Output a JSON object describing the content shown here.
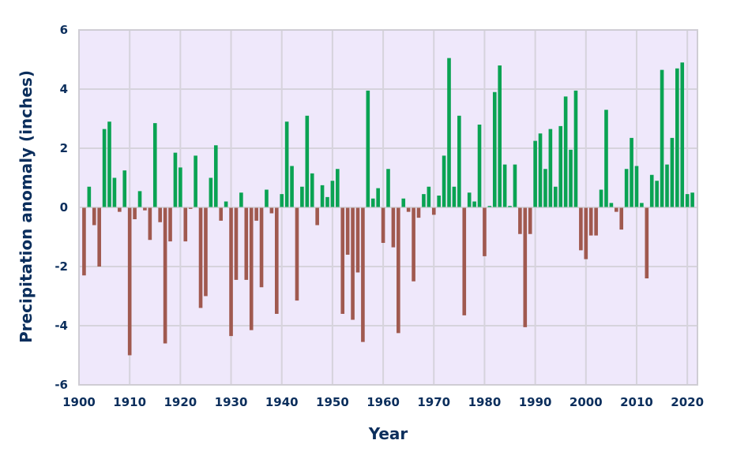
{
  "colors": {
    "plot_background": "#efe8fb",
    "grid": "#d6d3dc",
    "frame": "#cfcdd4",
    "positive": "#0aa353",
    "negative": "#a0594f",
    "text": "#0b2e5c"
  },
  "chart_data": {
    "type": "bar",
    "title": "",
    "xlabel": "Year",
    "ylabel": "Precipitation anomaly (inches)",
    "xlim": [
      1900,
      2022
    ],
    "ylim": [
      -6,
      6
    ],
    "x_ticks": [
      1900,
      1910,
      1920,
      1930,
      1940,
      1950,
      1960,
      1970,
      1980,
      1990,
      2000,
      2010,
      2020
    ],
    "y_ticks": [
      -6,
      -4,
      -2,
      0,
      2,
      4,
      6
    ],
    "grid": true,
    "legend": "none",
    "x": [
      1901,
      1902,
      1903,
      1904,
      1905,
      1906,
      1907,
      1908,
      1909,
      1910,
      1911,
      1912,
      1913,
      1914,
      1915,
      1916,
      1917,
      1918,
      1919,
      1920,
      1921,
      1922,
      1923,
      1924,
      1925,
      1926,
      1927,
      1928,
      1929,
      1930,
      1931,
      1932,
      1933,
      1934,
      1935,
      1936,
      1937,
      1938,
      1939,
      1940,
      1941,
      1942,
      1943,
      1944,
      1945,
      1946,
      1947,
      1948,
      1949,
      1950,
      1951,
      1952,
      1953,
      1954,
      1955,
      1956,
      1957,
      1958,
      1959,
      1960,
      1961,
      1962,
      1963,
      1964,
      1965,
      1966,
      1967,
      1968,
      1969,
      1970,
      1971,
      1972,
      1973,
      1974,
      1975,
      1976,
      1977,
      1978,
      1979,
      1980,
      1981,
      1982,
      1983,
      1984,
      1985,
      1986,
      1987,
      1988,
      1989,
      1990,
      1991,
      1992,
      1993,
      1994,
      1995,
      1996,
      1997,
      1998,
      1999,
      2000,
      2001,
      2002,
      2003,
      2004,
      2005,
      2006,
      2007,
      2008,
      2009,
      2010,
      2011,
      2012,
      2013,
      2014,
      2015,
      2016,
      2017,
      2018,
      2019,
      2020,
      2021
    ],
    "values": [
      -2.3,
      0.7,
      -0.6,
      -2.0,
      2.65,
      2.9,
      1.0,
      -0.15,
      1.25,
      -5.0,
      -0.4,
      0.55,
      -0.1,
      -1.1,
      2.85,
      -0.5,
      -4.6,
      -1.15,
      1.85,
      1.35,
      -1.15,
      -0.05,
      1.75,
      -3.4,
      -3.0,
      1.0,
      2.1,
      -0.45,
      0.2,
      -4.35,
      -2.45,
      0.5,
      -2.45,
      -4.15,
      -0.45,
      -2.7,
      0.6,
      -0.2,
      -3.6,
      0.45,
      2.9,
      1.4,
      -3.15,
      0.7,
      3.1,
      1.15,
      -0.6,
      0.75,
      0.35,
      0.9,
      1.3,
      -3.6,
      -1.6,
      -3.8,
      -2.2,
      -4.55,
      3.95,
      0.3,
      0.65,
      -1.2,
      1.3,
      -1.35,
      -4.25,
      0.3,
      -0.15,
      -2.5,
      -0.35,
      0.45,
      0.7,
      -0.25,
      0.4,
      1.75,
      5.05,
      0.7,
      3.1,
      -3.65,
      0.5,
      0.2,
      2.8,
      -1.65,
      0.05,
      3.9,
      4.8,
      1.45,
      0.05,
      1.45,
      -0.9,
      -4.05,
      -0.9,
      2.25,
      2.5,
      1.3,
      2.65,
      0.7,
      2.75,
      3.75,
      1.95,
      3.95,
      -1.45,
      -1.75,
      -0.95,
      -0.95,
      0.6,
      3.3,
      0.15,
      -0.15,
      -0.75,
      1.3,
      2.35,
      1.4,
      0.15,
      -2.4,
      1.1,
      0.9,
      4.65,
      1.45,
      2.35,
      4.7,
      4.9,
      0.45,
      0.5
    ]
  }
}
